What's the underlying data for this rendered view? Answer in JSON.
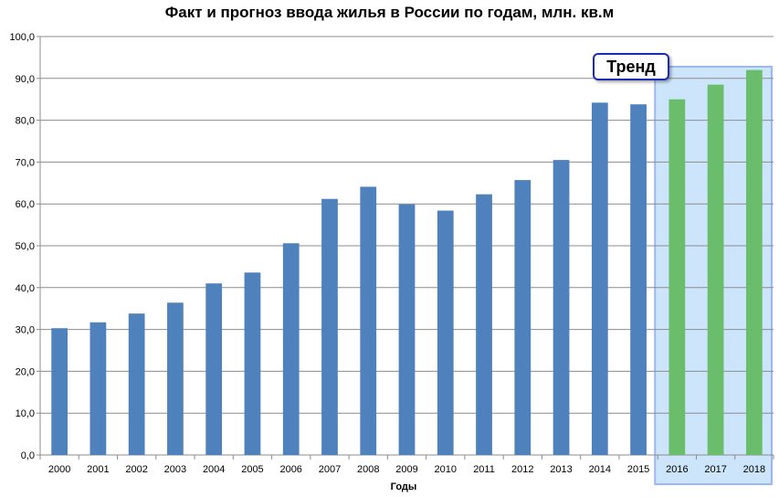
{
  "chart_data": {
    "type": "bar",
    "title": "Факт и прогноз ввода жилья в России по годам, млн. кв.м",
    "xlabel": "Годы",
    "ylabel": "",
    "ylim": [
      0,
      100
    ],
    "y_tick_step": 10,
    "y_tick_labels": [
      "0,0",
      "10,0",
      "20,0",
      "30,0",
      "40,0",
      "50,0",
      "60,0",
      "70,0",
      "80,0",
      "90,0",
      "100,0"
    ],
    "grid": true,
    "categories": [
      "2000",
      "2001",
      "2002",
      "2003",
      "2004",
      "2005",
      "2006",
      "2007",
      "2008",
      "2009",
      "2010",
      "2011",
      "2012",
      "2013",
      "2014",
      "2015",
      "2016",
      "2017",
      "2018"
    ],
    "values": [
      30.3,
      31.7,
      33.8,
      36.4,
      41.0,
      43.6,
      50.6,
      61.2,
      64.1,
      59.9,
      58.4,
      62.3,
      65.7,
      70.5,
      84.2,
      83.8,
      85.0,
      88.5,
      92.0
    ],
    "forecast_from": "2016",
    "annotation": "Тренд",
    "colors": {
      "actual": "#4f81bd",
      "forecast": "#6abd6b",
      "forecast_band": "#cce5fb",
      "forecast_band_border": "#9db8ee",
      "grid": "#8c8c8c",
      "annotation_border": "#1c2bb6"
    }
  }
}
